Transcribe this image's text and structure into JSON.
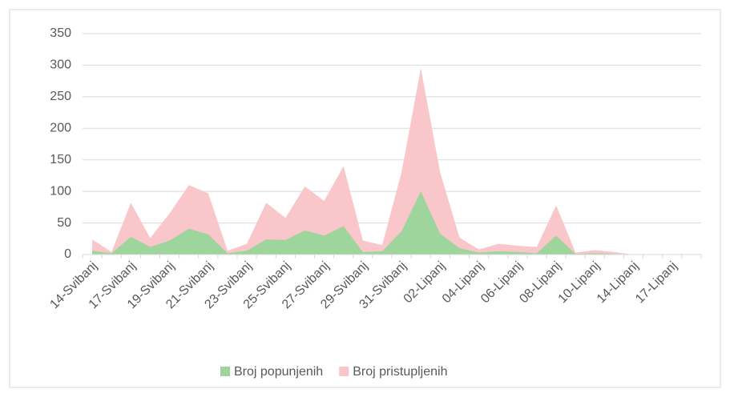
{
  "chart_data": {
    "type": "area",
    "categories": [
      "14-Svibanj",
      null,
      "17-Svibanj",
      null,
      "19-Svibanj",
      null,
      "21-Svibanj",
      null,
      "23-Svibanj",
      null,
      "25-Svibanj",
      null,
      "27-Svibanj",
      null,
      "29-Svibanj",
      null,
      "31-Svibanj",
      null,
      "02-Lipanj",
      null,
      "04-Lipanj",
      null,
      "06-Lipanj",
      null,
      "08-Lipanj",
      null,
      "10-Lipanj",
      null,
      "14-Lipanj",
      null,
      "17-Lipanj",
      null
    ],
    "series": [
      {
        "name": "Broj popunjenih",
        "color": "#9dd59c",
        "values": [
          6,
          2,
          28,
          12,
          22,
          41,
          32,
          2,
          6,
          24,
          23,
          38,
          30,
          45,
          4,
          5,
          37,
          100,
          33,
          10,
          3,
          5,
          4,
          2,
          30,
          1,
          2,
          1,
          0,
          0,
          0,
          0
        ]
      },
      {
        "name": "Broj pristupljenih",
        "color": "#f9c6ca",
        "values": [
          24,
          4,
          82,
          26,
          65,
          110,
          97,
          6,
          17,
          82,
          58,
          108,
          85,
          140,
          22,
          15,
          130,
          295,
          130,
          27,
          8,
          17,
          14,
          12,
          78,
          3,
          7,
          4,
          0,
          0,
          0,
          0
        ]
      }
    ],
    "ylim": [
      0,
      350
    ],
    "yticks": [
      0,
      50,
      100,
      150,
      200,
      250,
      300,
      350
    ],
    "grid": true,
    "legend": "bottom"
  }
}
